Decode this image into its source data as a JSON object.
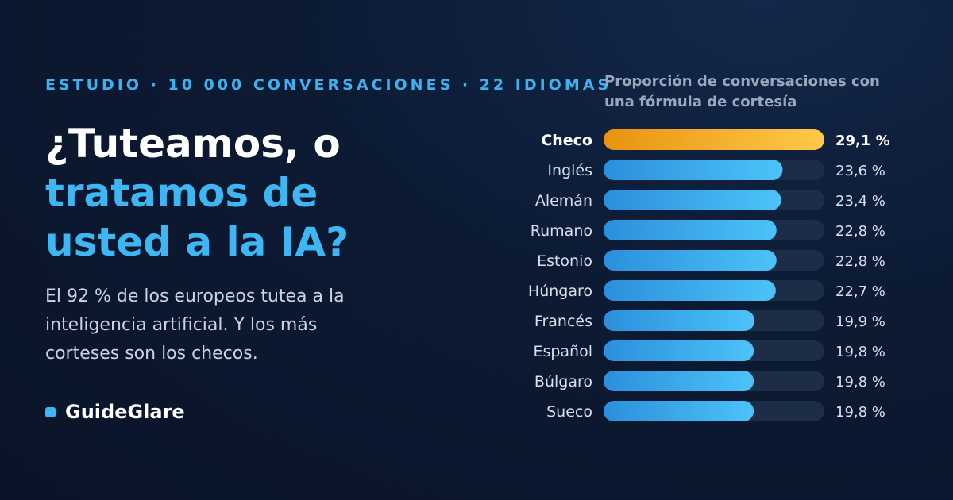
{
  "eyebrow": "ESTUDIO · 10 000 CONVERSACIONES · 22 IDIOMAS",
  "headline": {
    "line1": "¿Tuteamos, o",
    "line2": "tratamos de usted a la IA?"
  },
  "subhead": "El 92 % de los europeos tutea a la inteligencia artificial. Y los más corteses son los checos.",
  "brand": "GuideGlare",
  "colors": {
    "accent": "#3fb6f4",
    "highlight": "#f5a623",
    "track": "#1e2d47"
  },
  "chart_data": {
    "type": "bar",
    "orientation": "horizontal",
    "title": "Proporción de conversaciones con una fórmula de cortesía",
    "categories": [
      "Checo",
      "Inglés",
      "Alemán",
      "Rumano",
      "Estonio",
      "Húngaro",
      "Francés",
      "Español",
      "Búlgaro",
      "Sueco"
    ],
    "values": [
      29.1,
      23.6,
      23.4,
      22.8,
      22.8,
      22.7,
      19.9,
      19.8,
      19.8,
      19.8
    ],
    "value_labels": [
      "29,1 %",
      "23,6 %",
      "23,4 %",
      "22,8 %",
      "22,8 %",
      "22,7 %",
      "19,9 %",
      "19,8 %",
      "19,8 %",
      "19,8 %"
    ],
    "highlighted_category": "Checo",
    "xlim": [
      0,
      29.1
    ],
    "grid": false,
    "legend": "none"
  }
}
